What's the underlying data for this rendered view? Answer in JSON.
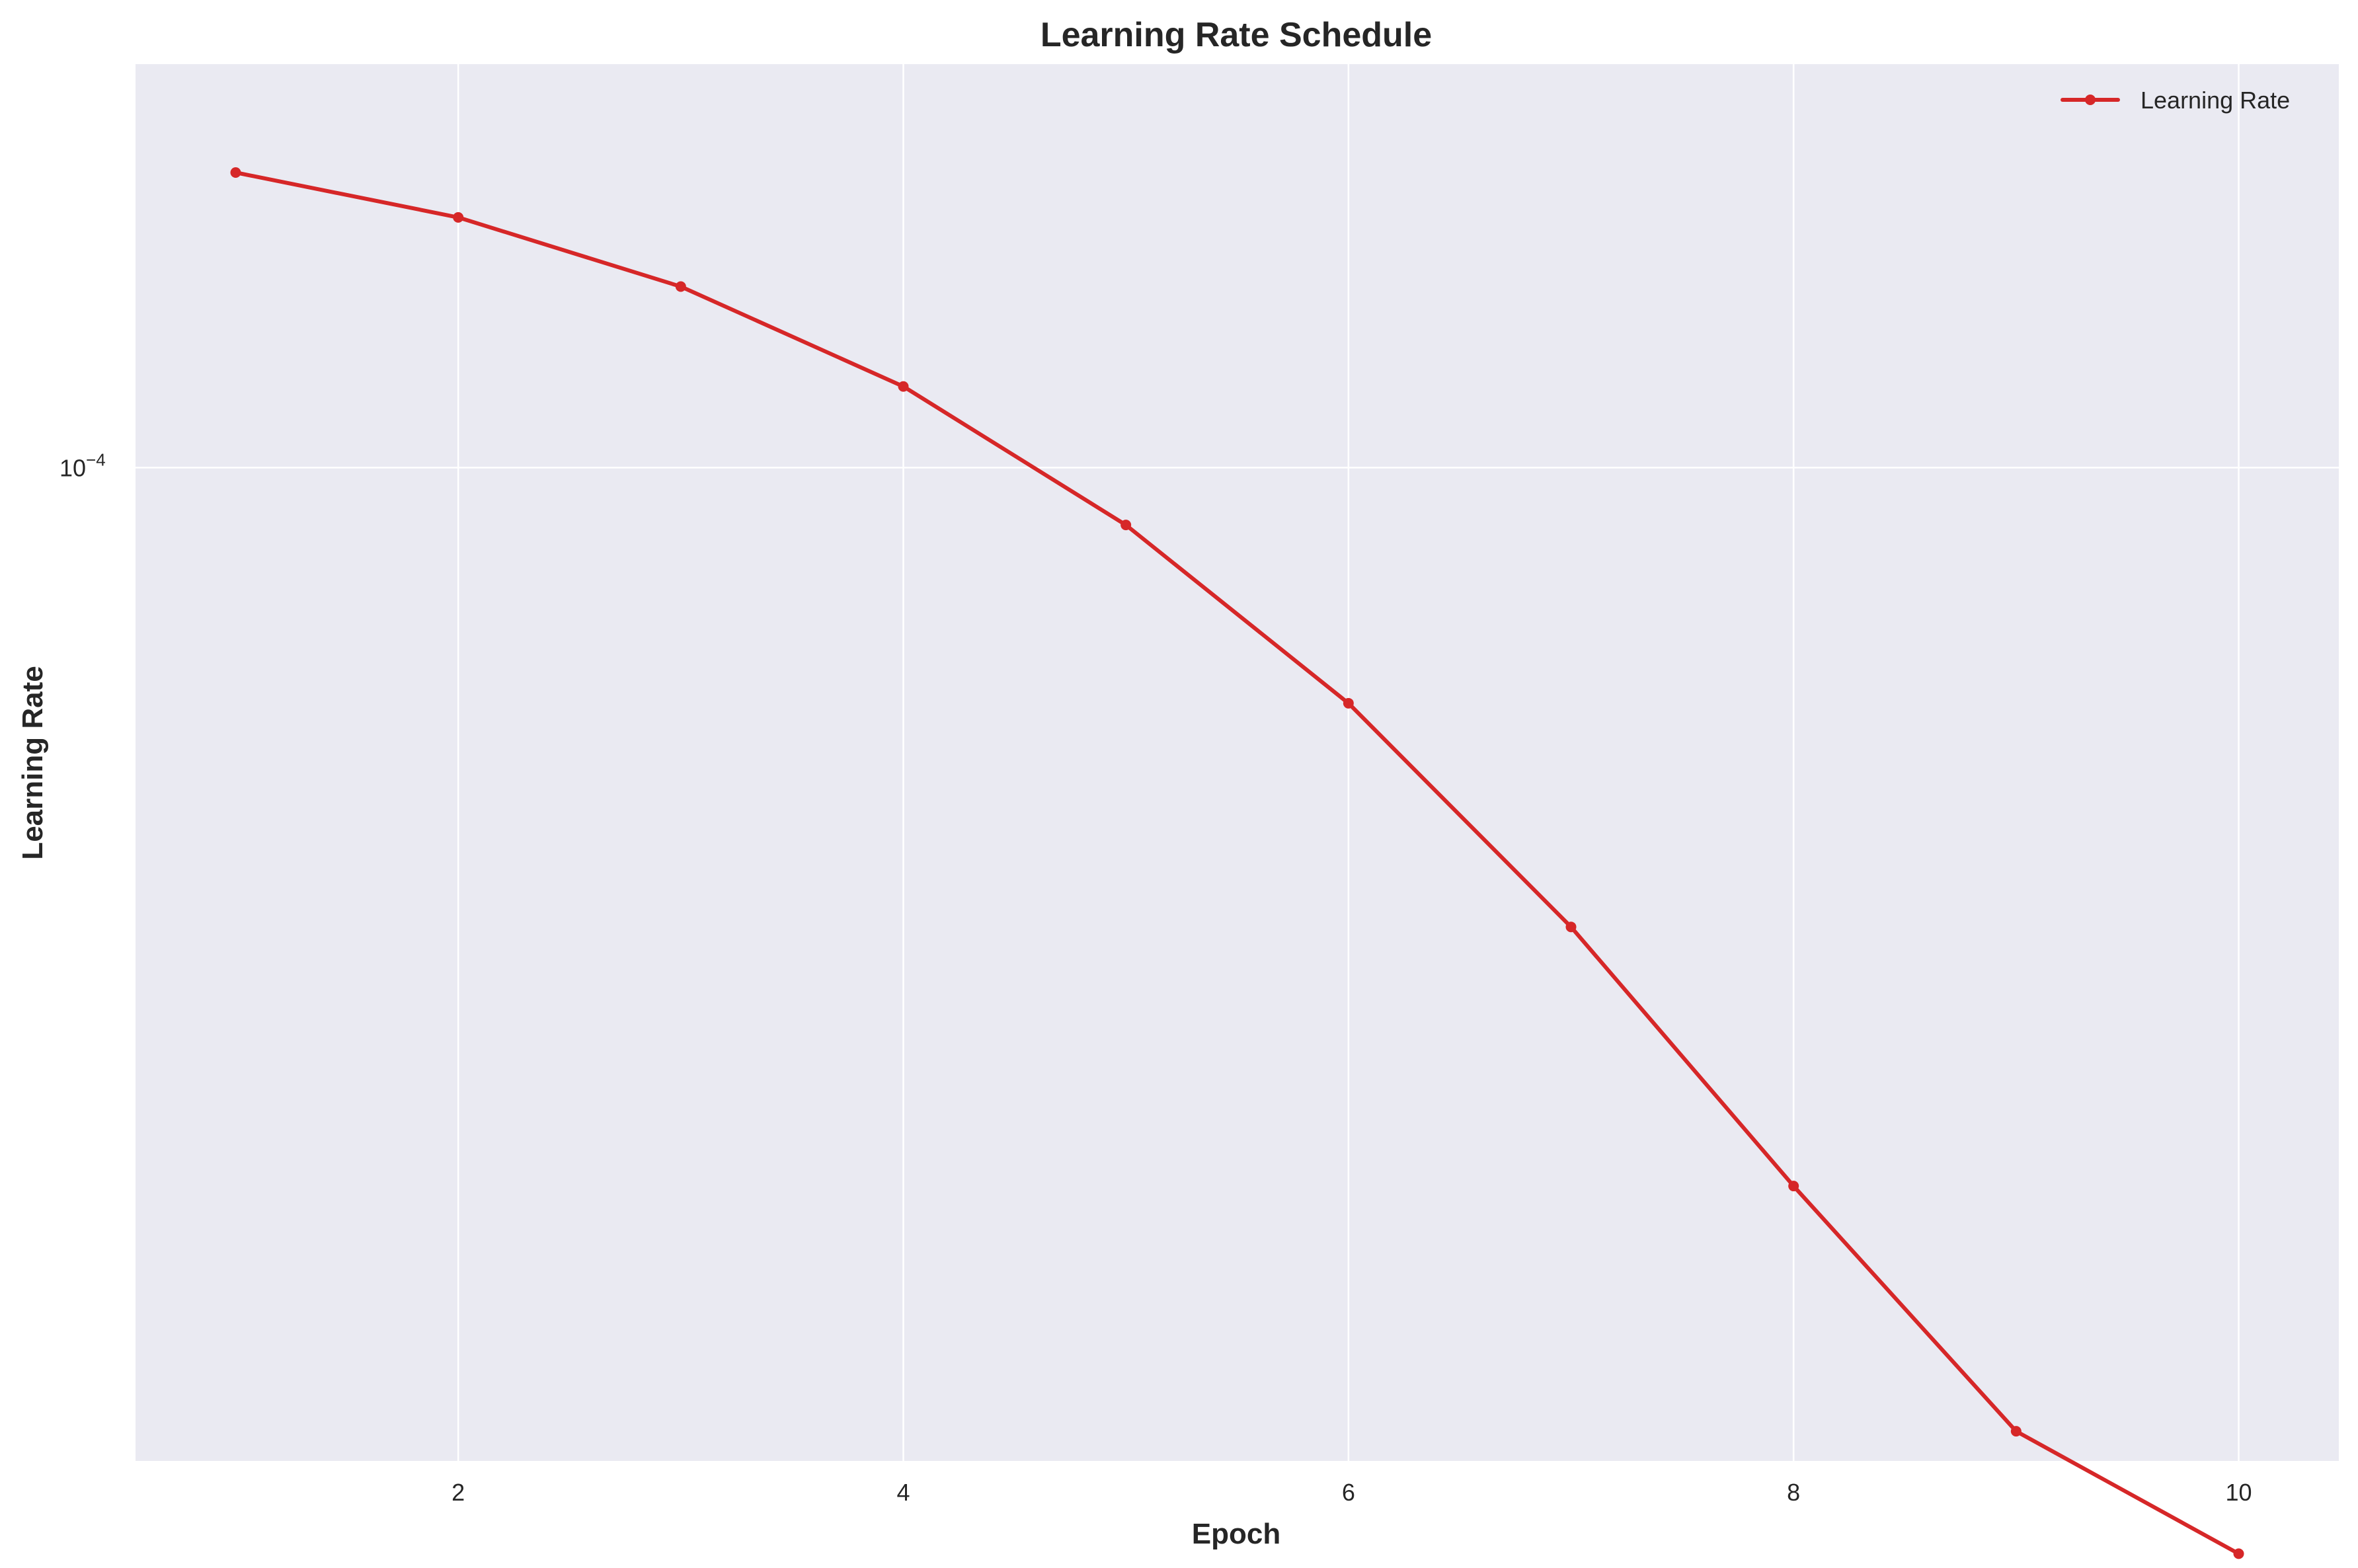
{
  "chart_data": {
    "type": "line",
    "title": "Learning Rate Schedule",
    "xlabel": "Epoch",
    "ylabel": "Learning Rate",
    "x_ticks": [
      2,
      4,
      6,
      8,
      10
    ],
    "y_ticks": [
      {
        "value": 0.0001,
        "base": "10",
        "exponent": "−4"
      }
    ],
    "xlim": [
      0.55,
      10.45
    ],
    "ylim": [
      9.7e-06,
      0.000258
    ],
    "y_scale": "log",
    "grid": true,
    "legend_position": "top-right",
    "series": [
      {
        "name": "Learning Rate",
        "color": "#d62728",
        "marker": "circle",
        "x": [
          1,
          2,
          3,
          4,
          5,
          6,
          7,
          8,
          9,
          10
        ],
        "y": [
          0.0002,
          0.00018,
          0.000153,
          0.000121,
          8.74e-05,
          5.75e-05,
          3.4e-05,
          1.85e-05,
          1.04e-05,
          7.8e-06
        ]
      }
    ]
  },
  "colors": {
    "plot_background": "#eaeaf2",
    "grid": "#ffffff",
    "series": "#d62728",
    "text": "#262626"
  }
}
